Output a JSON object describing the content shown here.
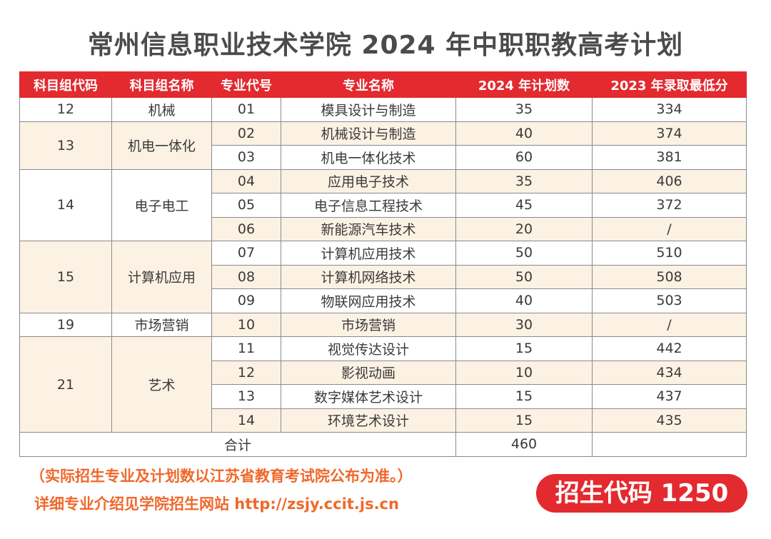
{
  "title": "常州信息职业技术学院 2024 年中职职教高考计划",
  "table": {
    "headers": [
      "科目组代码",
      "科目组名称",
      "专业代号",
      "专业名称",
      "2024 年计划数",
      "2023 年录取最低分"
    ],
    "groups": [
      {
        "group_code": "12",
        "group_name": "机械",
        "majors": [
          {
            "code": "01",
            "name": "模具设计与制造",
            "plan": "35",
            "min_score": "334"
          }
        ]
      },
      {
        "group_code": "13",
        "group_name": "机电一体化",
        "majors": [
          {
            "code": "02",
            "name": "机械设计与制造",
            "plan": "40",
            "min_score": "374"
          },
          {
            "code": "03",
            "name": "机电一体化技术",
            "plan": "60",
            "min_score": "381"
          }
        ]
      },
      {
        "group_code": "14",
        "group_name": "电子电工",
        "majors": [
          {
            "code": "04",
            "name": "应用电子技术",
            "plan": "35",
            "min_score": "406"
          },
          {
            "code": "05",
            "name": "电子信息工程技术",
            "plan": "45",
            "min_score": "372"
          },
          {
            "code": "06",
            "name": "新能源汽车技术",
            "plan": "20",
            "min_score": "/"
          }
        ]
      },
      {
        "group_code": "15",
        "group_name": "计算机应用",
        "majors": [
          {
            "code": "07",
            "name": "计算机应用技术",
            "plan": "50",
            "min_score": "510"
          },
          {
            "code": "08",
            "name": "计算机网络技术",
            "plan": "50",
            "min_score": "508"
          },
          {
            "code": "09",
            "name": "物联网应用技术",
            "plan": "40",
            "min_score": "503"
          }
        ]
      },
      {
        "group_code": "19",
        "group_name": "市场营销",
        "majors": [
          {
            "code": "10",
            "name": "市场营销",
            "plan": "30",
            "min_score": "/"
          }
        ]
      },
      {
        "group_code": "21",
        "group_name": "艺术",
        "majors": [
          {
            "code": "11",
            "name": "视觉传达设计",
            "plan": "15",
            "min_score": "442"
          },
          {
            "code": "12",
            "name": "影视动画",
            "plan": "10",
            "min_score": "434"
          },
          {
            "code": "13",
            "name": "数字媒体艺术设计",
            "plan": "15",
            "min_score": "437"
          },
          {
            "code": "14",
            "name": "环境艺术设计",
            "plan": "15",
            "min_score": "435"
          }
        ]
      }
    ],
    "total_label": "合计",
    "total_plan": "460"
  },
  "note": "（实际招生专业及计划数以江苏省教育考试院公布为准。）",
  "website": "详细专业介绍见学院招生网站 http://zsjy.ccit.js.cn",
  "admission_code": "招生代码 1250",
  "colors": {
    "accent": "#e32a2f",
    "row_shade": "#fcf2e3",
    "note": "#f0682a",
    "title": "#4b4b4b"
  }
}
